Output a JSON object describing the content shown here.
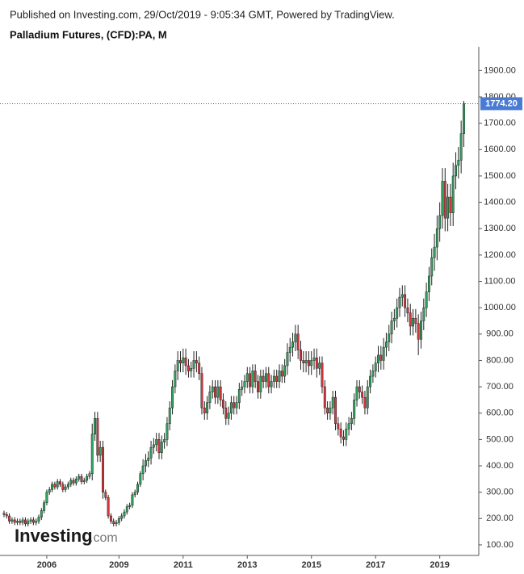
{
  "header": "Published on Investing.com, 29/Oct/2019 - 9:05:34 GMT, Powered by TradingView.",
  "chart_data": {
    "type": "candlestick",
    "title": "Palladium Futures, (CFD):PA, M",
    "watermark": {
      "brand": "Investing",
      "suffix": ".com"
    },
    "up_color": "#2ea55e",
    "down_color": "#d9363e",
    "open": [
      220,
      215,
      210,
      190,
      195,
      185,
      190,
      185,
      195,
      180,
      190,
      195,
      185,
      190,
      205,
      230,
      260,
      300,
      310,
      330,
      320,
      340,
      330,
      310,
      320,
      330,
      345,
      335,
      350,
      360,
      340,
      345,
      360,
      370,
      520,
      580,
      440,
      470,
      300,
      280,
      210,
      190,
      180,
      185,
      200,
      210,
      225,
      245,
      250,
      290,
      300,
      330,
      370,
      400,
      420,
      430,
      470,
      480,
      500,
      450,
      490,
      500,
      560,
      620,
      700,
      760,
      800,
      790,
      810,
      780,
      760,
      770,
      800,
      790,
      750,
      620,
      600,
      640,
      680,
      700,
      660,
      700,
      650,
      620,
      580,
      600,
      640,
      620,
      640,
      690,
      700,
      720,
      750,
      700,
      760,
      720,
      680,
      740,
      720,
      750,
      700,
      720,
      740,
      720,
      760,
      740,
      780,
      830,
      850,
      870,
      900,
      840,
      800,
      790,
      800,
      780,
      800,
      810,
      770,
      790,
      700,
      620,
      600,
      620,
      660,
      560,
      540,
      510,
      500,
      540,
      560,
      580,
      650,
      700,
      680,
      660,
      620,
      700,
      740,
      760,
      790,
      820,
      800,
      850,
      870,
      900,
      950,
      960,
      1000,
      1040,
      1050,
      1000,
      980,
      930,
      960,
      940,
      880,
      950,
      1000,
      1060,
      1120,
      1190,
      1230,
      1300,
      1350,
      1480,
      1340,
      1420,
      1360,
      1500,
      1540,
      1560,
      1660
    ],
    "high": [
      230,
      225,
      220,
      205,
      205,
      200,
      200,
      205,
      205,
      200,
      205,
      205,
      200,
      215,
      240,
      270,
      310,
      320,
      340,
      340,
      350,
      350,
      340,
      330,
      340,
      355,
      355,
      360,
      370,
      370,
      355,
      370,
      380,
      560,
      605,
      605,
      495,
      495,
      310,
      290,
      220,
      200,
      195,
      210,
      220,
      235,
      255,
      260,
      300,
      310,
      340,
      380,
      425,
      445,
      455,
      495,
      505,
      525,
      525,
      515,
      525,
      585,
      645,
      725,
      785,
      835,
      835,
      845,
      845,
      805,
      795,
      835,
      835,
      815,
      775,
      645,
      665,
      705,
      725,
      725,
      725,
      725,
      675,
      645,
      625,
      665,
      665,
      665,
      715,
      725,
      745,
      775,
      775,
      785,
      785,
      745,
      765,
      765,
      775,
      775,
      745,
      765,
      765,
      785,
      785,
      805,
      865,
      885,
      905,
      935,
      935,
      875,
      835,
      835,
      835,
      835,
      845,
      845,
      815,
      815,
      725,
      645,
      645,
      685,
      685,
      585,
      565,
      535,
      565,
      585,
      605,
      675,
      725,
      725,
      705,
      685,
      725,
      765,
      785,
      815,
      855,
      855,
      885,
      905,
      935,
      985,
      995,
      1035,
      1075,
      1085,
      1085,
      1035,
      1015,
      995,
      995,
      975,
      985,
      1035,
      1095,
      1155,
      1225,
      1280,
      1350,
      1400,
      1530,
      1530,
      1470,
      1470,
      1550,
      1590,
      1610,
      1710,
      1785
    ],
    "low": [
      205,
      200,
      180,
      180,
      175,
      175,
      175,
      175,
      170,
      170,
      180,
      175,
      175,
      180,
      195,
      220,
      250,
      290,
      300,
      310,
      310,
      320,
      300,
      300,
      310,
      320,
      325,
      325,
      340,
      330,
      330,
      335,
      350,
      345,
      495,
      415,
      415,
      275,
      270,
      200,
      180,
      170,
      170,
      175,
      190,
      200,
      215,
      235,
      240,
      280,
      290,
      320,
      345,
      375,
      395,
      405,
      445,
      455,
      425,
      425,
      465,
      475,
      535,
      595,
      675,
      725,
      755,
      755,
      745,
      735,
      735,
      735,
      755,
      725,
      595,
      575,
      575,
      615,
      655,
      635,
      635,
      625,
      595,
      555,
      555,
      575,
      595,
      595,
      615,
      665,
      675,
      695,
      675,
      675,
      695,
      655,
      655,
      695,
      695,
      675,
      675,
      695,
      695,
      695,
      715,
      715,
      745,
      795,
      815,
      835,
      805,
      765,
      755,
      755,
      745,
      745,
      765,
      735,
      745,
      675,
      595,
      575,
      575,
      595,
      535,
      515,
      485,
      475,
      475,
      515,
      535,
      555,
      625,
      655,
      635,
      595,
      595,
      675,
      715,
      735,
      755,
      765,
      765,
      815,
      835,
      865,
      915,
      925,
      965,
      1005,
      965,
      945,
      895,
      895,
      905,
      820,
      845,
      915,
      965,
      1025,
      1085,
      1140,
      1180,
      1250,
      1300,
      1290,
      1290,
      1310,
      1310,
      1450,
      1490,
      1510,
      1610
    ],
    "close": [
      215,
      210,
      190,
      195,
      185,
      190,
      185,
      195,
      180,
      190,
      195,
      185,
      190,
      205,
      230,
      260,
      300,
      310,
      330,
      320,
      340,
      330,
      310,
      320,
      330,
      345,
      335,
      350,
      360,
      340,
      345,
      360,
      370,
      520,
      580,
      440,
      470,
      300,
      280,
      210,
      190,
      180,
      185,
      200,
      210,
      225,
      245,
      250,
      290,
      300,
      330,
      370,
      400,
      420,
      430,
      470,
      480,
      500,
      450,
      490,
      500,
      560,
      620,
      700,
      760,
      800,
      790,
      810,
      780,
      760,
      770,
      800,
      790,
      750,
      620,
      600,
      640,
      680,
      700,
      660,
      700,
      650,
      620,
      580,
      600,
      640,
      620,
      640,
      690,
      700,
      720,
      750,
      700,
      760,
      720,
      680,
      740,
      720,
      750,
      700,
      720,
      740,
      720,
      760,
      740,
      780,
      830,
      850,
      870,
      900,
      840,
      800,
      790,
      800,
      780,
      800,
      810,
      770,
      790,
      700,
      620,
      600,
      620,
      660,
      560,
      540,
      510,
      500,
      540,
      560,
      580,
      650,
      700,
      680,
      660,
      620,
      700,
      740,
      760,
      790,
      820,
      800,
      850,
      870,
      900,
      950,
      960,
      1000,
      1040,
      1050,
      1000,
      980,
      930,
      960,
      940,
      880,
      950,
      1000,
      1060,
      1120,
      1190,
      1230,
      1300,
      1350,
      1480,
      1340,
      1420,
      1360,
      1500,
      1540,
      1560,
      1660,
      1774.2
    ],
    "last_price": {
      "value": 1774.2,
      "label": "1774.20"
    },
    "ylim": [
      60,
      1990
    ],
    "yticks": [
      {
        "value": 100,
        "label": "100.00"
      },
      {
        "value": 200,
        "label": "200.00"
      },
      {
        "value": 300,
        "label": "300.00"
      },
      {
        "value": 400,
        "label": "400.00"
      },
      {
        "value": 500,
        "label": "500.00"
      },
      {
        "value": 600,
        "label": "600.00"
      },
      {
        "value": 700,
        "label": "700.00"
      },
      {
        "value": 800,
        "label": "800.00"
      },
      {
        "value": 900,
        "label": "900.00"
      },
      {
        "value": 1000,
        "label": "1000.00"
      },
      {
        "value": 1100,
        "label": "1100.00"
      },
      {
        "value": 1200,
        "label": "1200.00"
      },
      {
        "value": 1300,
        "label": "1300.00"
      },
      {
        "value": 1400,
        "label": "1400.00"
      },
      {
        "value": 1500,
        "label": "1500.00"
      },
      {
        "value": 1600,
        "label": "1600.00"
      },
      {
        "value": 1700,
        "label": "1700.00"
      },
      {
        "value": 1800,
        "label": "1800.00"
      },
      {
        "value": 1900,
        "label": "1900.00"
      }
    ],
    "xlim": [
      -1.5,
      177.6
    ],
    "xticks": [
      {
        "value": 16,
        "label": "2006"
      },
      {
        "value": 43,
        "label": "2009"
      },
      {
        "value": 67,
        "label": "2011"
      },
      {
        "value": 91,
        "label": "2013"
      },
      {
        "value": 115,
        "label": "2015"
      },
      {
        "value": 139,
        "label": "2017"
      },
      {
        "value": 163,
        "label": "2019"
      }
    ]
  }
}
